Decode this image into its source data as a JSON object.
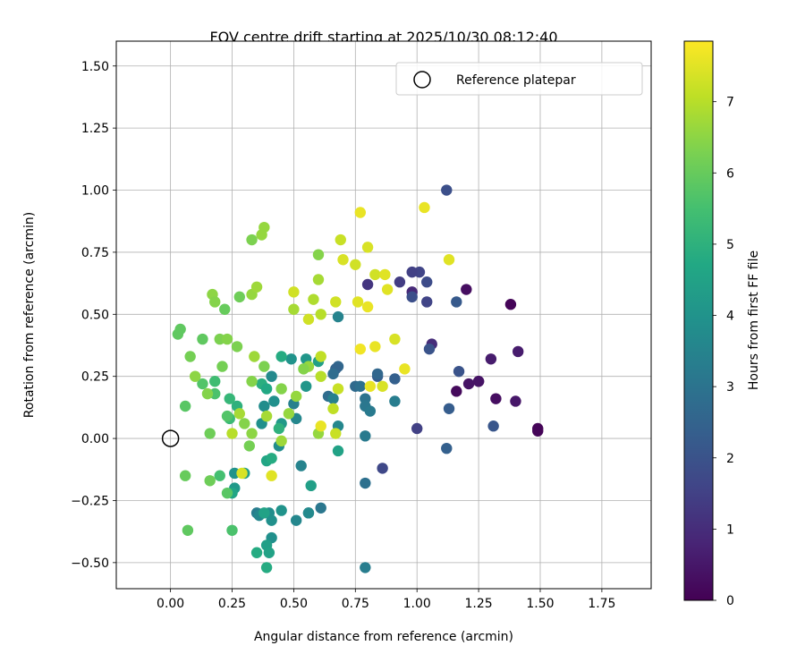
{
  "chart_data": {
    "type": "scatter",
    "title": "FOV centre drift starting at 2025/10/30 08:12:40",
    "xlabel": "Angular distance from reference (arcmin)",
    "ylabel": "Rotation from reference (arcmin)",
    "xlim": [
      -0.22,
      1.95
    ],
    "ylim": [
      -0.605,
      1.6
    ],
    "xticks": [
      0.0,
      0.25,
      0.5,
      0.75,
      1.0,
      1.25,
      1.5,
      1.75
    ],
    "xtick_labels": [
      "0.00",
      "0.25",
      "0.50",
      "0.75",
      "1.00",
      "1.25",
      "1.50",
      "1.75"
    ],
    "yticks": [
      -0.5,
      -0.25,
      0.0,
      0.25,
      0.5,
      0.75,
      1.0,
      1.25,
      1.5
    ],
    "ytick_labels": [
      "−0.50",
      "−0.25",
      "0.00",
      "0.25",
      "0.50",
      "0.75",
      "1.00",
      "1.25",
      "1.50"
    ],
    "grid": true,
    "colormap": "viridis",
    "colorbar": {
      "label": "Hours from first FF file",
      "range": [
        0,
        7.85
      ],
      "ticks": [
        0,
        1,
        2,
        3,
        4,
        5,
        6,
        7
      ],
      "tick_labels": [
        "0",
        "1",
        "2",
        "3",
        "4",
        "5",
        "6",
        "7"
      ]
    },
    "legend": {
      "position": "top-right",
      "entries": [
        "Reference platepar"
      ]
    },
    "reference_point": {
      "x": 0.0,
      "y": 0.0
    },
    "points": [
      {
        "x": 1.49,
        "y": 0.03,
        "c": 0.1
      },
      {
        "x": 1.49,
        "y": 0.04,
        "c": 0.1
      },
      {
        "x": 1.38,
        "y": 0.54,
        "c": 0.1
      },
      {
        "x": 1.4,
        "y": 0.15,
        "c": 0.5
      },
      {
        "x": 1.32,
        "y": 0.16,
        "c": 0.3
      },
      {
        "x": 1.25,
        "y": 0.23,
        "c": 0.2
      },
      {
        "x": 1.21,
        "y": 0.22,
        "c": 0.4
      },
      {
        "x": 1.16,
        "y": 0.19,
        "c": 0.2
      },
      {
        "x": 1.2,
        "y": 0.6,
        "c": 0.3
      },
      {
        "x": 1.3,
        "y": 0.32,
        "c": 0.6
      },
      {
        "x": 1.41,
        "y": 0.35,
        "c": 0.6
      },
      {
        "x": 1.25,
        "y": 0.23,
        "c": 0.4
      },
      {
        "x": 1.06,
        "y": 0.38,
        "c": 1.0
      },
      {
        "x": 0.98,
        "y": 0.59,
        "c": 0.9
      },
      {
        "x": 0.8,
        "y": 0.62,
        "c": 1.2
      },
      {
        "x": 1.12,
        "y": 1.0,
        "c": 1.9
      },
      {
        "x": 1.05,
        "y": 0.36,
        "c": 2.0
      },
      {
        "x": 1.17,
        "y": 0.27,
        "c": 2.0
      },
      {
        "x": 1.01,
        "y": 0.67,
        "c": 1.6
      },
      {
        "x": 0.98,
        "y": 0.67,
        "c": 1.5
      },
      {
        "x": 0.93,
        "y": 0.63,
        "c": 1.4
      },
      {
        "x": 1.04,
        "y": 0.63,
        "c": 1.8
      },
      {
        "x": 0.98,
        "y": 0.57,
        "c": 1.9
      },
      {
        "x": 1.04,
        "y": 0.55,
        "c": 1.6
      },
      {
        "x": 1.16,
        "y": 0.55,
        "c": 2.2
      },
      {
        "x": 1.13,
        "y": 0.12,
        "c": 2.3
      },
      {
        "x": 1.0,
        "y": 0.04,
        "c": 1.5
      },
      {
        "x": 1.12,
        "y": -0.04,
        "c": 2.4
      },
      {
        "x": 1.31,
        "y": 0.05,
        "c": 2.1
      },
      {
        "x": 0.86,
        "y": -0.12,
        "c": 1.7
      },
      {
        "x": 0.91,
        "y": 0.24,
        "c": 2.4
      },
      {
        "x": 0.84,
        "y": 0.25,
        "c": 2.3
      },
      {
        "x": 0.84,
        "y": 0.26,
        "c": 2.6
      },
      {
        "x": 0.75,
        "y": 0.21,
        "c": 2.7
      },
      {
        "x": 0.77,
        "y": 0.21,
        "c": 2.9
      },
      {
        "x": 0.79,
        "y": 0.16,
        "c": 3.0
      },
      {
        "x": 0.79,
        "y": 0.13,
        "c": 3.1
      },
      {
        "x": 0.81,
        "y": 0.11,
        "c": 3.2
      },
      {
        "x": 0.91,
        "y": 0.15,
        "c": 3.3
      },
      {
        "x": 0.79,
        "y": 0.01,
        "c": 3.2
      },
      {
        "x": 0.79,
        "y": -0.18,
        "c": 2.9
      },
      {
        "x": 0.79,
        "y": -0.52,
        "c": 3.3
      },
      {
        "x": 0.68,
        "y": 0.29,
        "c": 2.6
      },
      {
        "x": 0.67,
        "y": 0.28,
        "c": 2.5
      },
      {
        "x": 0.66,
        "y": 0.26,
        "c": 2.8
      },
      {
        "x": 0.64,
        "y": 0.17,
        "c": 2.8
      },
      {
        "x": 0.66,
        "y": 0.16,
        "c": 3.4
      },
      {
        "x": 0.68,
        "y": 0.05,
        "c": 3.6
      },
      {
        "x": 0.68,
        "y": 0.49,
        "c": 3.5
      },
      {
        "x": 0.53,
        "y": -0.11,
        "c": 3.5
      },
      {
        "x": 0.61,
        "y": -0.28,
        "c": 3.1
      },
      {
        "x": 0.56,
        "y": -0.3,
        "c": 3.4
      },
      {
        "x": 0.56,
        "y": -0.3,
        "c": 3.7
      },
      {
        "x": 0.51,
        "y": -0.33,
        "c": 3.6
      },
      {
        "x": 0.57,
        "y": -0.19,
        "c": 4.4
      },
      {
        "x": 0.68,
        "y": -0.05,
        "c": 4.5
      },
      {
        "x": 0.51,
        "y": 0.08,
        "c": 3.6
      },
      {
        "x": 0.5,
        "y": 0.14,
        "c": 3.4
      },
      {
        "x": 0.49,
        "y": 0.32,
        "c": 4.0
      },
      {
        "x": 0.55,
        "y": 0.32,
        "c": 4.1
      },
      {
        "x": 0.6,
        "y": 0.31,
        "c": 4.4
      },
      {
        "x": 0.55,
        "y": 0.21,
        "c": 4.1
      },
      {
        "x": 0.41,
        "y": 0.25,
        "c": 3.7
      },
      {
        "x": 0.35,
        "y": -0.3,
        "c": 3.3
      },
      {
        "x": 0.36,
        "y": -0.31,
        "c": 3.6
      },
      {
        "x": 0.4,
        "y": -0.3,
        "c": 3.8
      },
      {
        "x": 0.45,
        "y": -0.29,
        "c": 4.0
      },
      {
        "x": 0.41,
        "y": -0.33,
        "c": 3.9
      },
      {
        "x": 0.41,
        "y": -0.4,
        "c": 3.9
      },
      {
        "x": 0.39,
        "y": -0.43,
        "c": 4.4
      },
      {
        "x": 0.4,
        "y": -0.46,
        "c": 4.5
      },
      {
        "x": 0.35,
        "y": -0.46,
        "c": 4.8
      },
      {
        "x": 0.39,
        "y": -0.52,
        "c": 4.8
      },
      {
        "x": 0.38,
        "y": -0.3,
        "c": 4.5
      },
      {
        "x": 0.39,
        "y": -0.09,
        "c": 4.6
      },
      {
        "x": 0.41,
        "y": -0.08,
        "c": 4.8
      },
      {
        "x": 0.44,
        "y": -0.03,
        "c": 3.8
      },
      {
        "x": 0.38,
        "y": 0.13,
        "c": 3.8
      },
      {
        "x": 0.37,
        "y": 0.06,
        "c": 3.9
      },
      {
        "x": 0.42,
        "y": 0.15,
        "c": 3.9
      },
      {
        "x": 0.45,
        "y": 0.06,
        "c": 4.2
      },
      {
        "x": 0.44,
        "y": 0.04,
        "c": 5.0
      },
      {
        "x": 0.45,
        "y": 0.33,
        "c": 4.8
      },
      {
        "x": 0.37,
        "y": 0.22,
        "c": 4.9
      },
      {
        "x": 0.39,
        "y": 0.2,
        "c": 4.7
      },
      {
        "x": 0.3,
        "y": -0.14,
        "c": 4.3
      },
      {
        "x": 0.26,
        "y": -0.14,
        "c": 4.0
      },
      {
        "x": 0.26,
        "y": -0.2,
        "c": 4.2
      },
      {
        "x": 0.25,
        "y": -0.22,
        "c": 4.6
      },
      {
        "x": 0.27,
        "y": 0.13,
        "c": 5.0
      },
      {
        "x": 0.24,
        "y": 0.16,
        "c": 5.2
      },
      {
        "x": 0.18,
        "y": 0.23,
        "c": 5.4
      },
      {
        "x": 0.18,
        "y": 0.18,
        "c": 5.6
      },
      {
        "x": 0.24,
        "y": 0.08,
        "c": 5.3
      },
      {
        "x": 0.23,
        "y": 0.09,
        "c": 5.7
      },
      {
        "x": 0.2,
        "y": -0.15,
        "c": 5.5
      },
      {
        "x": 0.23,
        "y": -0.22,
        "c": 5.8
      },
      {
        "x": 0.25,
        "y": -0.37,
        "c": 5.6
      },
      {
        "x": 0.07,
        "y": -0.37,
        "c": 5.9
      },
      {
        "x": 0.06,
        "y": -0.15,
        "c": 6.0
      },
      {
        "x": 0.16,
        "y": -0.17,
        "c": 6.1
      },
      {
        "x": 0.06,
        "y": 0.13,
        "c": 5.8
      },
      {
        "x": 0.03,
        "y": 0.42,
        "c": 5.9
      },
      {
        "x": 0.04,
        "y": 0.44,
        "c": 5.9
      },
      {
        "x": 0.13,
        "y": 0.4,
        "c": 5.9
      },
      {
        "x": 0.08,
        "y": 0.33,
        "c": 6.2
      },
      {
        "x": 0.13,
        "y": 0.22,
        "c": 5.7
      },
      {
        "x": 0.2,
        "y": 0.4,
        "c": 6.3
      },
      {
        "x": 0.23,
        "y": 0.4,
        "c": 6.4
      },
      {
        "x": 0.27,
        "y": 0.37,
        "c": 6.3
      },
      {
        "x": 0.22,
        "y": 0.52,
        "c": 6.0
      },
      {
        "x": 0.28,
        "y": 0.57,
        "c": 6.1
      },
      {
        "x": 0.33,
        "y": 0.58,
        "c": 6.6
      },
      {
        "x": 0.35,
        "y": 0.61,
        "c": 6.7
      },
      {
        "x": 0.17,
        "y": 0.58,
        "c": 6.5
      },
      {
        "x": 0.18,
        "y": 0.55,
        "c": 6.4
      },
      {
        "x": 0.33,
        "y": 0.8,
        "c": 6.3
      },
      {
        "x": 0.37,
        "y": 0.82,
        "c": 6.6
      },
      {
        "x": 0.38,
        "y": 0.85,
        "c": 6.6
      },
      {
        "x": 0.6,
        "y": 0.74,
        "c": 6.4
      },
      {
        "x": 0.6,
        "y": 0.64,
        "c": 6.8
      },
      {
        "x": 0.58,
        "y": 0.56,
        "c": 6.9
      },
      {
        "x": 0.5,
        "y": 0.52,
        "c": 6.8
      },
      {
        "x": 0.61,
        "y": 0.5,
        "c": 7.0
      },
      {
        "x": 0.56,
        "y": 0.48,
        "c": 7.3
      },
      {
        "x": 0.5,
        "y": 0.59,
        "c": 7.3
      },
      {
        "x": 0.67,
        "y": 0.55,
        "c": 7.3
      },
      {
        "x": 0.7,
        "y": 0.72,
        "c": 7.4
      },
      {
        "x": 0.69,
        "y": 0.8,
        "c": 7.2
      },
      {
        "x": 0.75,
        "y": 0.7,
        "c": 7.3
      },
      {
        "x": 0.8,
        "y": 0.77,
        "c": 7.4
      },
      {
        "x": 0.77,
        "y": 0.91,
        "c": 7.6
      },
      {
        "x": 0.83,
        "y": 0.66,
        "c": 7.3
      },
      {
        "x": 0.87,
        "y": 0.66,
        "c": 7.5
      },
      {
        "x": 0.88,
        "y": 0.6,
        "c": 7.5
      },
      {
        "x": 0.76,
        "y": 0.55,
        "c": 7.5
      },
      {
        "x": 0.8,
        "y": 0.53,
        "c": 7.6
      },
      {
        "x": 0.77,
        "y": 0.36,
        "c": 7.7
      },
      {
        "x": 0.83,
        "y": 0.37,
        "c": 7.6
      },
      {
        "x": 0.91,
        "y": 0.4,
        "c": 7.4
      },
      {
        "x": 0.95,
        "y": 0.28,
        "c": 7.6
      },
      {
        "x": 0.81,
        "y": 0.21,
        "c": 7.6
      },
      {
        "x": 0.86,
        "y": 0.21,
        "c": 7.4
      },
      {
        "x": 1.03,
        "y": 0.93,
        "c": 7.6
      },
      {
        "x": 1.13,
        "y": 0.72,
        "c": 7.5
      },
      {
        "x": 0.68,
        "y": 0.2,
        "c": 7.2
      },
      {
        "x": 0.66,
        "y": 0.12,
        "c": 7.1
      },
      {
        "x": 0.61,
        "y": 0.25,
        "c": 7.0
      },
      {
        "x": 0.61,
        "y": 0.33,
        "c": 7.1
      },
      {
        "x": 0.56,
        "y": 0.29,
        "c": 6.6
      },
      {
        "x": 0.54,
        "y": 0.28,
        "c": 6.4
      },
      {
        "x": 0.51,
        "y": 0.17,
        "c": 6.6
      },
      {
        "x": 0.48,
        "y": 0.1,
        "c": 6.6
      },
      {
        "x": 0.45,
        "y": -0.01,
        "c": 6.7
      },
      {
        "x": 0.41,
        "y": -0.15,
        "c": 7.5
      },
      {
        "x": 0.3,
        "y": 0.06,
        "c": 6.4
      },
      {
        "x": 0.32,
        "y": -0.03,
        "c": 6.2
      },
      {
        "x": 0.33,
        "y": 0.02,
        "c": 6.5
      },
      {
        "x": 0.33,
        "y": 0.23,
        "c": 6.4
      },
      {
        "x": 0.38,
        "y": 0.29,
        "c": 6.3
      },
      {
        "x": 0.34,
        "y": 0.33,
        "c": 6.7
      },
      {
        "x": 0.45,
        "y": 0.2,
        "c": 6.4
      },
      {
        "x": 0.39,
        "y": 0.09,
        "c": 6.8
      },
      {
        "x": 0.25,
        "y": 0.02,
        "c": 7.0
      },
      {
        "x": 0.16,
        "y": 0.02,
        "c": 6.1
      },
      {
        "x": 0.1,
        "y": 0.25,
        "c": 6.5
      },
      {
        "x": 0.15,
        "y": 0.18,
        "c": 6.4
      },
      {
        "x": 0.21,
        "y": 0.29,
        "c": 6.2
      },
      {
        "x": 0.28,
        "y": 0.1,
        "c": 6.8
      },
      {
        "x": 0.29,
        "y": -0.14,
        "c": 7.4
      },
      {
        "x": 0.6,
        "y": 0.02,
        "c": 6.6
      },
      {
        "x": 0.61,
        "y": 0.05,
        "c": 7.6
      },
      {
        "x": 0.67,
        "y": 0.02,
        "c": 7.2
      }
    ]
  }
}
